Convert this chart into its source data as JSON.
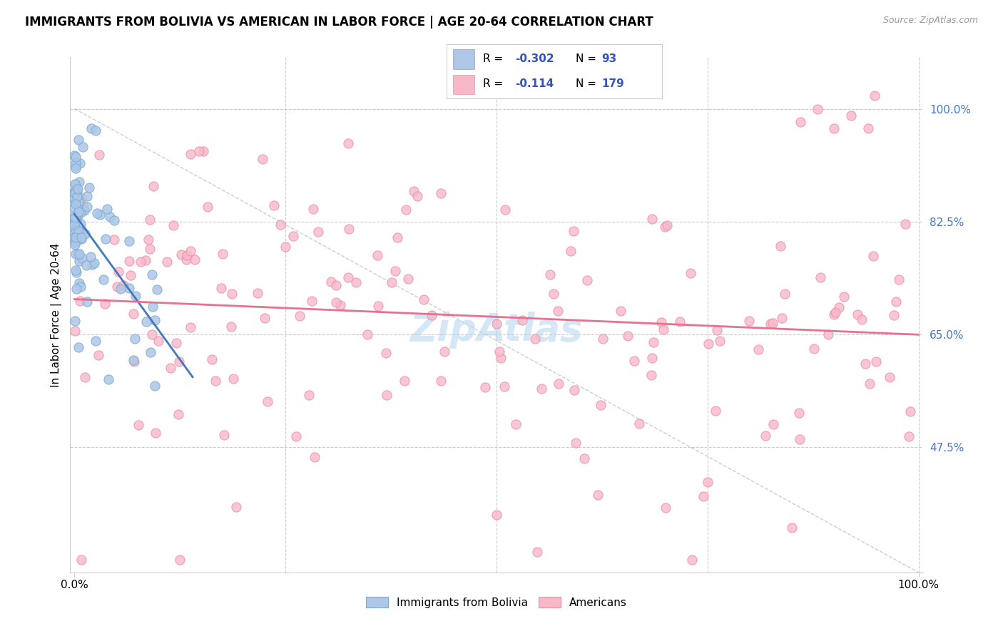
{
  "title": "IMMIGRANTS FROM BOLIVIA VS AMERICAN IN LABOR FORCE | AGE 20-64 CORRELATION CHART",
  "source": "Source: ZipAtlas.com",
  "ylabel": "In Labor Force | Age 20-64",
  "blue_color": "#aec6e8",
  "pink_color": "#f9b8c8",
  "blue_edge": "#7aaed0",
  "pink_edge": "#e890a8",
  "blue_line_color": "#4477bb",
  "pink_line_color": "#e87090",
  "text_blue": "#4477cc",
  "watermark_color": "#b8d8f0",
  "legend_text_black": "R = ",
  "legend_text_blue": "#3355bb"
}
